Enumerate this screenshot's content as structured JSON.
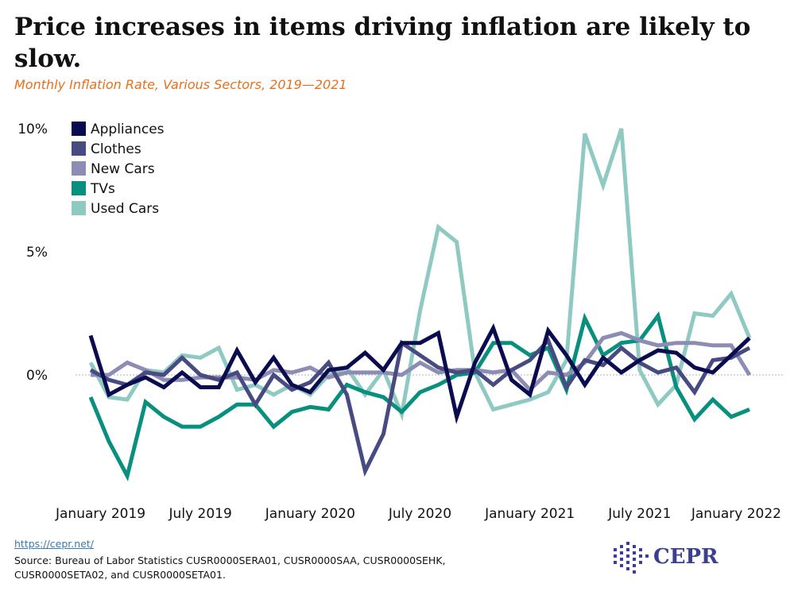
{
  "title": "Price increases in items driving inflation are likely to slow.",
  "subtitle": "Monthly Inflation Rate, Various Sectors, 2019—2021",
  "footer": {
    "link": "https://cepr.net/",
    "source": "Source: Bureau of Labor Statistics CUSR0000SERA01, CUSR0000SAA, CUSR0000SEHK, CUSR0000SETA02, and CUSR0000SETA01.",
    "logo_text": "CEPR"
  },
  "colors": {
    "appliances": "#0b0b4f",
    "clothes": "#474b82",
    "new_cars": "#8c8cb5",
    "tvs": "#08907e",
    "used_cars": "#8fcac2"
  },
  "chart_data": {
    "type": "line",
    "title": "Price increases in items driving inflation are likely to slow.",
    "subtitle": "Monthly Inflation Rate, Various Sectors, 2019—2021",
    "xlabel": "",
    "ylabel": "",
    "ylim": [
      -5,
      10
    ],
    "y_ticks": [
      {
        "value": 0,
        "label": "0%"
      },
      {
        "value": 5,
        "label": "5%"
      },
      {
        "value": 10,
        "label": "10%"
      }
    ],
    "x_ticks": [
      {
        "index": 0,
        "label": "January 2019"
      },
      {
        "index": 6,
        "label": "July 2019"
      },
      {
        "index": 12,
        "label": "January 2020"
      },
      {
        "index": 18,
        "label": "July 2020"
      },
      {
        "index": 24,
        "label": "January 2021"
      },
      {
        "index": 30,
        "label": "July 2021"
      },
      {
        "index": 36,
        "label": "January 2022"
      }
    ],
    "zero_line": true,
    "legend_position": "top-left",
    "series": [
      {
        "key": "used_cars",
        "name": "Used Cars",
        "values": [
          0.5,
          -0.9,
          -1.0,
          0.2,
          0.1,
          0.8,
          0.7,
          1.1,
          -0.6,
          -0.4,
          -0.8,
          -0.4,
          -0.8,
          0.0,
          0.3,
          -0.8,
          0.2,
          -1.6,
          2.6,
          6.0,
          5.4,
          0.1,
          -1.4,
          -1.2,
          -1.0,
          -0.7,
          0.6,
          9.8,
          7.7,
          10.0,
          0.2,
          -1.2,
          -0.4,
          2.5,
          2.4,
          3.3,
          1.5
        ]
      },
      {
        "key": "tvs",
        "name": "TVs",
        "values": [
          -0.9,
          -2.7,
          -4.1,
          -1.1,
          -1.7,
          -2.1,
          -2.1,
          -1.7,
          -1.2,
          -1.2,
          -2.1,
          -1.5,
          -1.3,
          -1.4,
          -0.4,
          -0.7,
          -0.9,
          -1.5,
          -0.7,
          -0.4,
          0.0,
          0.1,
          1.3,
          1.3,
          0.8,
          1.1,
          -0.6,
          2.3,
          0.8,
          1.3,
          1.4,
          2.4,
          -0.5,
          -1.8,
          -1.0,
          -1.7,
          -1.4
        ]
      },
      {
        "key": "new_cars",
        "name": "New Cars",
        "values": [
          0.0,
          0.0,
          0.5,
          0.2,
          -0.2,
          -0.2,
          -0.1,
          -0.1,
          -0.1,
          -0.2,
          0.2,
          0.1,
          0.3,
          -0.1,
          0.1,
          0.1,
          0.1,
          0.0,
          0.5,
          0.1,
          0.2,
          0.2,
          0.1,
          0.2,
          -0.6,
          0.1,
          0.0,
          0.5,
          1.5,
          1.7,
          1.4,
          1.2,
          1.3,
          1.3,
          1.2,
          1.2,
          0.0
        ]
      },
      {
        "key": "clothes",
        "name": "Clothes",
        "values": [
          0.2,
          -0.2,
          -0.4,
          0.1,
          0.0,
          0.7,
          0.0,
          -0.2,
          0.1,
          -1.2,
          0.0,
          -0.6,
          -0.3,
          0.5,
          -0.8,
          -3.9,
          -2.4,
          1.3,
          0.8,
          0.3,
          0.1,
          0.2,
          -0.4,
          0.2,
          0.6,
          1.4,
          -0.5,
          0.6,
          0.4,
          1.1,
          0.5,
          0.1,
          0.3,
          -0.7,
          0.6,
          0.7,
          1.1
        ]
      },
      {
        "key": "appliances",
        "name": "Appliances",
        "values": [
          1.6,
          -0.8,
          -0.4,
          -0.1,
          -0.5,
          0.1,
          -0.5,
          -0.5,
          1.0,
          -0.3,
          0.7,
          -0.4,
          -0.7,
          0.2,
          0.3,
          0.9,
          0.2,
          1.3,
          1.3,
          1.7,
          -1.7,
          0.5,
          1.9,
          -0.2,
          -0.8,
          1.8,
          0.8,
          -0.4,
          0.7,
          0.1,
          0.6,
          1.0,
          0.9,
          0.3,
          0.1,
          0.8,
          1.5
        ]
      }
    ],
    "legend": [
      "Appliances",
      "Clothes",
      "New Cars",
      "TVs",
      "Used Cars"
    ]
  }
}
